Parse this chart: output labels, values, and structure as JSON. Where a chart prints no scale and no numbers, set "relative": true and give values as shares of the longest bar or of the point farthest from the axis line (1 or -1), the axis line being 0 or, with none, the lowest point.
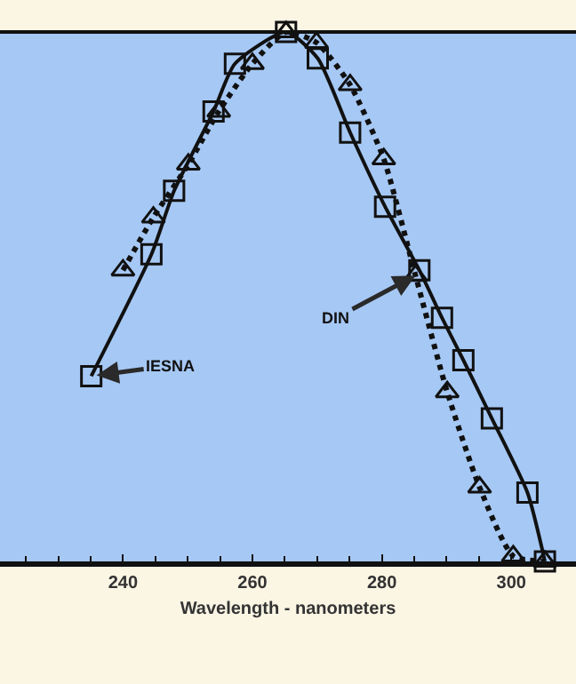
{
  "chart_data": {
    "type": "line",
    "relative": true,
    "xlabel": "Wavelength - nanometers",
    "xlim": [
      221,
      310
    ],
    "xticks": [
      240,
      260,
      280,
      300
    ],
    "grid": false,
    "legend": false,
    "series": [
      {
        "name": "IESNA",
        "color": "#111111",
        "marker": "square",
        "line_style": "solid",
        "x": [
          235.1,
          244.4,
          247.9,
          254.0,
          257.3,
          265.2,
          270.1,
          275.1,
          280.5,
          285.8,
          289.3,
          292.6,
          297.0,
          302.5,
          305.2
        ],
        "values": [
          0.35,
          0.58,
          0.7,
          0.85,
          0.94,
          1.0,
          0.95,
          0.81,
          0.67,
          0.55,
          0.46,
          0.38,
          0.27,
          0.13,
          0.0
        ]
      },
      {
        "name": "DIN",
        "color": "#111111",
        "marker": "triangle",
        "line_style": "dotted",
        "x": [
          240.0,
          244.7,
          250.1,
          254.8,
          260.0,
          265.2,
          269.9,
          275.1,
          280.3,
          285.2,
          290.1,
          295.1,
          300.3,
          305.2
        ],
        "values": [
          0.55,
          0.65,
          0.75,
          0.85,
          0.94,
          1.0,
          0.98,
          0.9,
          0.76,
          0.54,
          0.32,
          0.14,
          0.01,
          0.0
        ]
      }
    ]
  }
}
